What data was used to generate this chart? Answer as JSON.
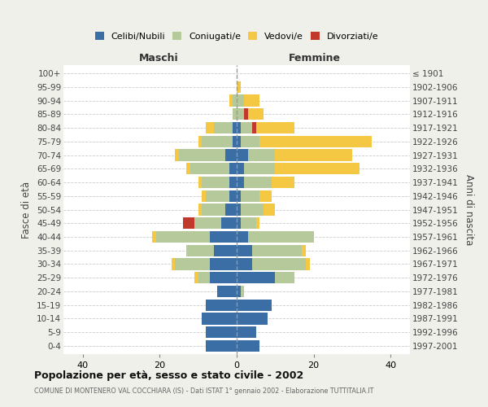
{
  "age_groups": [
    "0-4",
    "5-9",
    "10-14",
    "15-19",
    "20-24",
    "25-29",
    "30-34",
    "35-39",
    "40-44",
    "45-49",
    "50-54",
    "55-59",
    "60-64",
    "65-69",
    "70-74",
    "75-79",
    "80-84",
    "85-89",
    "90-94",
    "95-99",
    "100+"
  ],
  "birth_years": [
    "1997-2001",
    "1992-1996",
    "1987-1991",
    "1982-1986",
    "1977-1981",
    "1972-1976",
    "1967-1971",
    "1962-1966",
    "1957-1961",
    "1952-1956",
    "1947-1951",
    "1942-1946",
    "1937-1941",
    "1932-1936",
    "1927-1931",
    "1922-1926",
    "1917-1921",
    "1912-1916",
    "1907-1911",
    "1902-1906",
    "≤ 1901"
  ],
  "male": {
    "celibi": [
      8,
      8,
      9,
      8,
      5,
      7,
      7,
      6,
      7,
      4,
      3,
      2,
      2,
      2,
      3,
      1,
      1,
      0,
      0,
      0,
      0
    ],
    "coniugati": [
      0,
      0,
      0,
      0,
      0,
      3,
      9,
      7,
      14,
      7,
      6,
      6,
      7,
      10,
      12,
      8,
      5,
      1,
      1,
      0,
      0
    ],
    "vedovi": [
      0,
      0,
      0,
      0,
      0,
      1,
      1,
      0,
      1,
      0,
      1,
      1,
      1,
      1,
      1,
      1,
      2,
      0,
      1,
      0,
      0
    ],
    "divorziati": [
      0,
      0,
      0,
      0,
      0,
      0,
      0,
      0,
      0,
      3,
      0,
      0,
      0,
      0,
      0,
      0,
      0,
      0,
      0,
      0,
      0
    ]
  },
  "female": {
    "nubili": [
      6,
      5,
      8,
      9,
      1,
      10,
      4,
      4,
      3,
      1,
      1,
      1,
      2,
      2,
      3,
      1,
      1,
      0,
      0,
      0,
      0
    ],
    "coniugate": [
      0,
      0,
      0,
      0,
      1,
      5,
      14,
      13,
      17,
      4,
      6,
      5,
      7,
      8,
      7,
      5,
      3,
      2,
      2,
      0,
      0
    ],
    "vedove": [
      0,
      0,
      0,
      0,
      0,
      0,
      1,
      1,
      0,
      1,
      3,
      3,
      6,
      22,
      20,
      29,
      10,
      4,
      4,
      1,
      0
    ],
    "divorziate": [
      0,
      0,
      0,
      0,
      0,
      0,
      0,
      0,
      0,
      0,
      0,
      0,
      0,
      0,
      0,
      0,
      1,
      1,
      0,
      0,
      0
    ]
  },
  "colors": {
    "celibi": "#3a6ea5",
    "coniugati": "#b5c99a",
    "vedovi": "#f4c842",
    "divorziati": "#c0392b"
  },
  "xlim": 45,
  "title": "Popolazione per età, sesso e stato civile - 2002",
  "subtitle": "COMUNE DI MONTENERO VAL COCCHIARA (IS) - Dati ISTAT 1° gennaio 2002 - Elaborazione TUTTITALIA.IT",
  "ylabel_left": "Fasce di età",
  "ylabel_right": "Anni di nascita",
  "xlabel_left": "Maschi",
  "xlabel_right": "Femmine",
  "background_color": "#f0f0eb",
  "plot_bg": "#ffffff"
}
